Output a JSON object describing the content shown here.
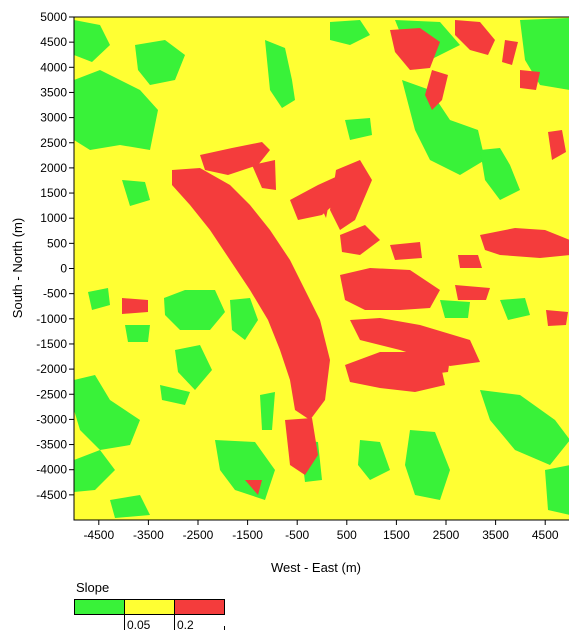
{
  "map": {
    "x_axis_label": "West - East (m)",
    "y_axis_label": "South - North (m)",
    "x_ticks": [
      "-4500",
      "-3500",
      "-2500",
      "-1500",
      "-500",
      "500",
      "1500",
      "2500",
      "3500",
      "4500"
    ],
    "y_ticks": [
      "5000",
      "4500",
      "4000",
      "3500",
      "3000",
      "2500",
      "2000",
      "1500",
      "1000",
      "500",
      "0",
      "-500",
      "-1000",
      "-1500",
      "-2000",
      "-2500",
      "-3000",
      "-3500",
      "-4000",
      "-4500"
    ],
    "x_range": [
      -5000,
      5000
    ],
    "y_range": [
      -5000,
      5000
    ],
    "colors": {
      "low": "#39f239",
      "mid": "#ffff33",
      "high": "#f43c3c"
    }
  },
  "legend": {
    "title": "Slope",
    "values": [
      "0.05",
      "0.2"
    ],
    "classes": [
      {
        "name": "low",
        "color": "#39f239"
      },
      {
        "name": "mid",
        "color": "#ffff33"
      },
      {
        "name": "high",
        "color": "#f43c3c"
      }
    ]
  }
}
